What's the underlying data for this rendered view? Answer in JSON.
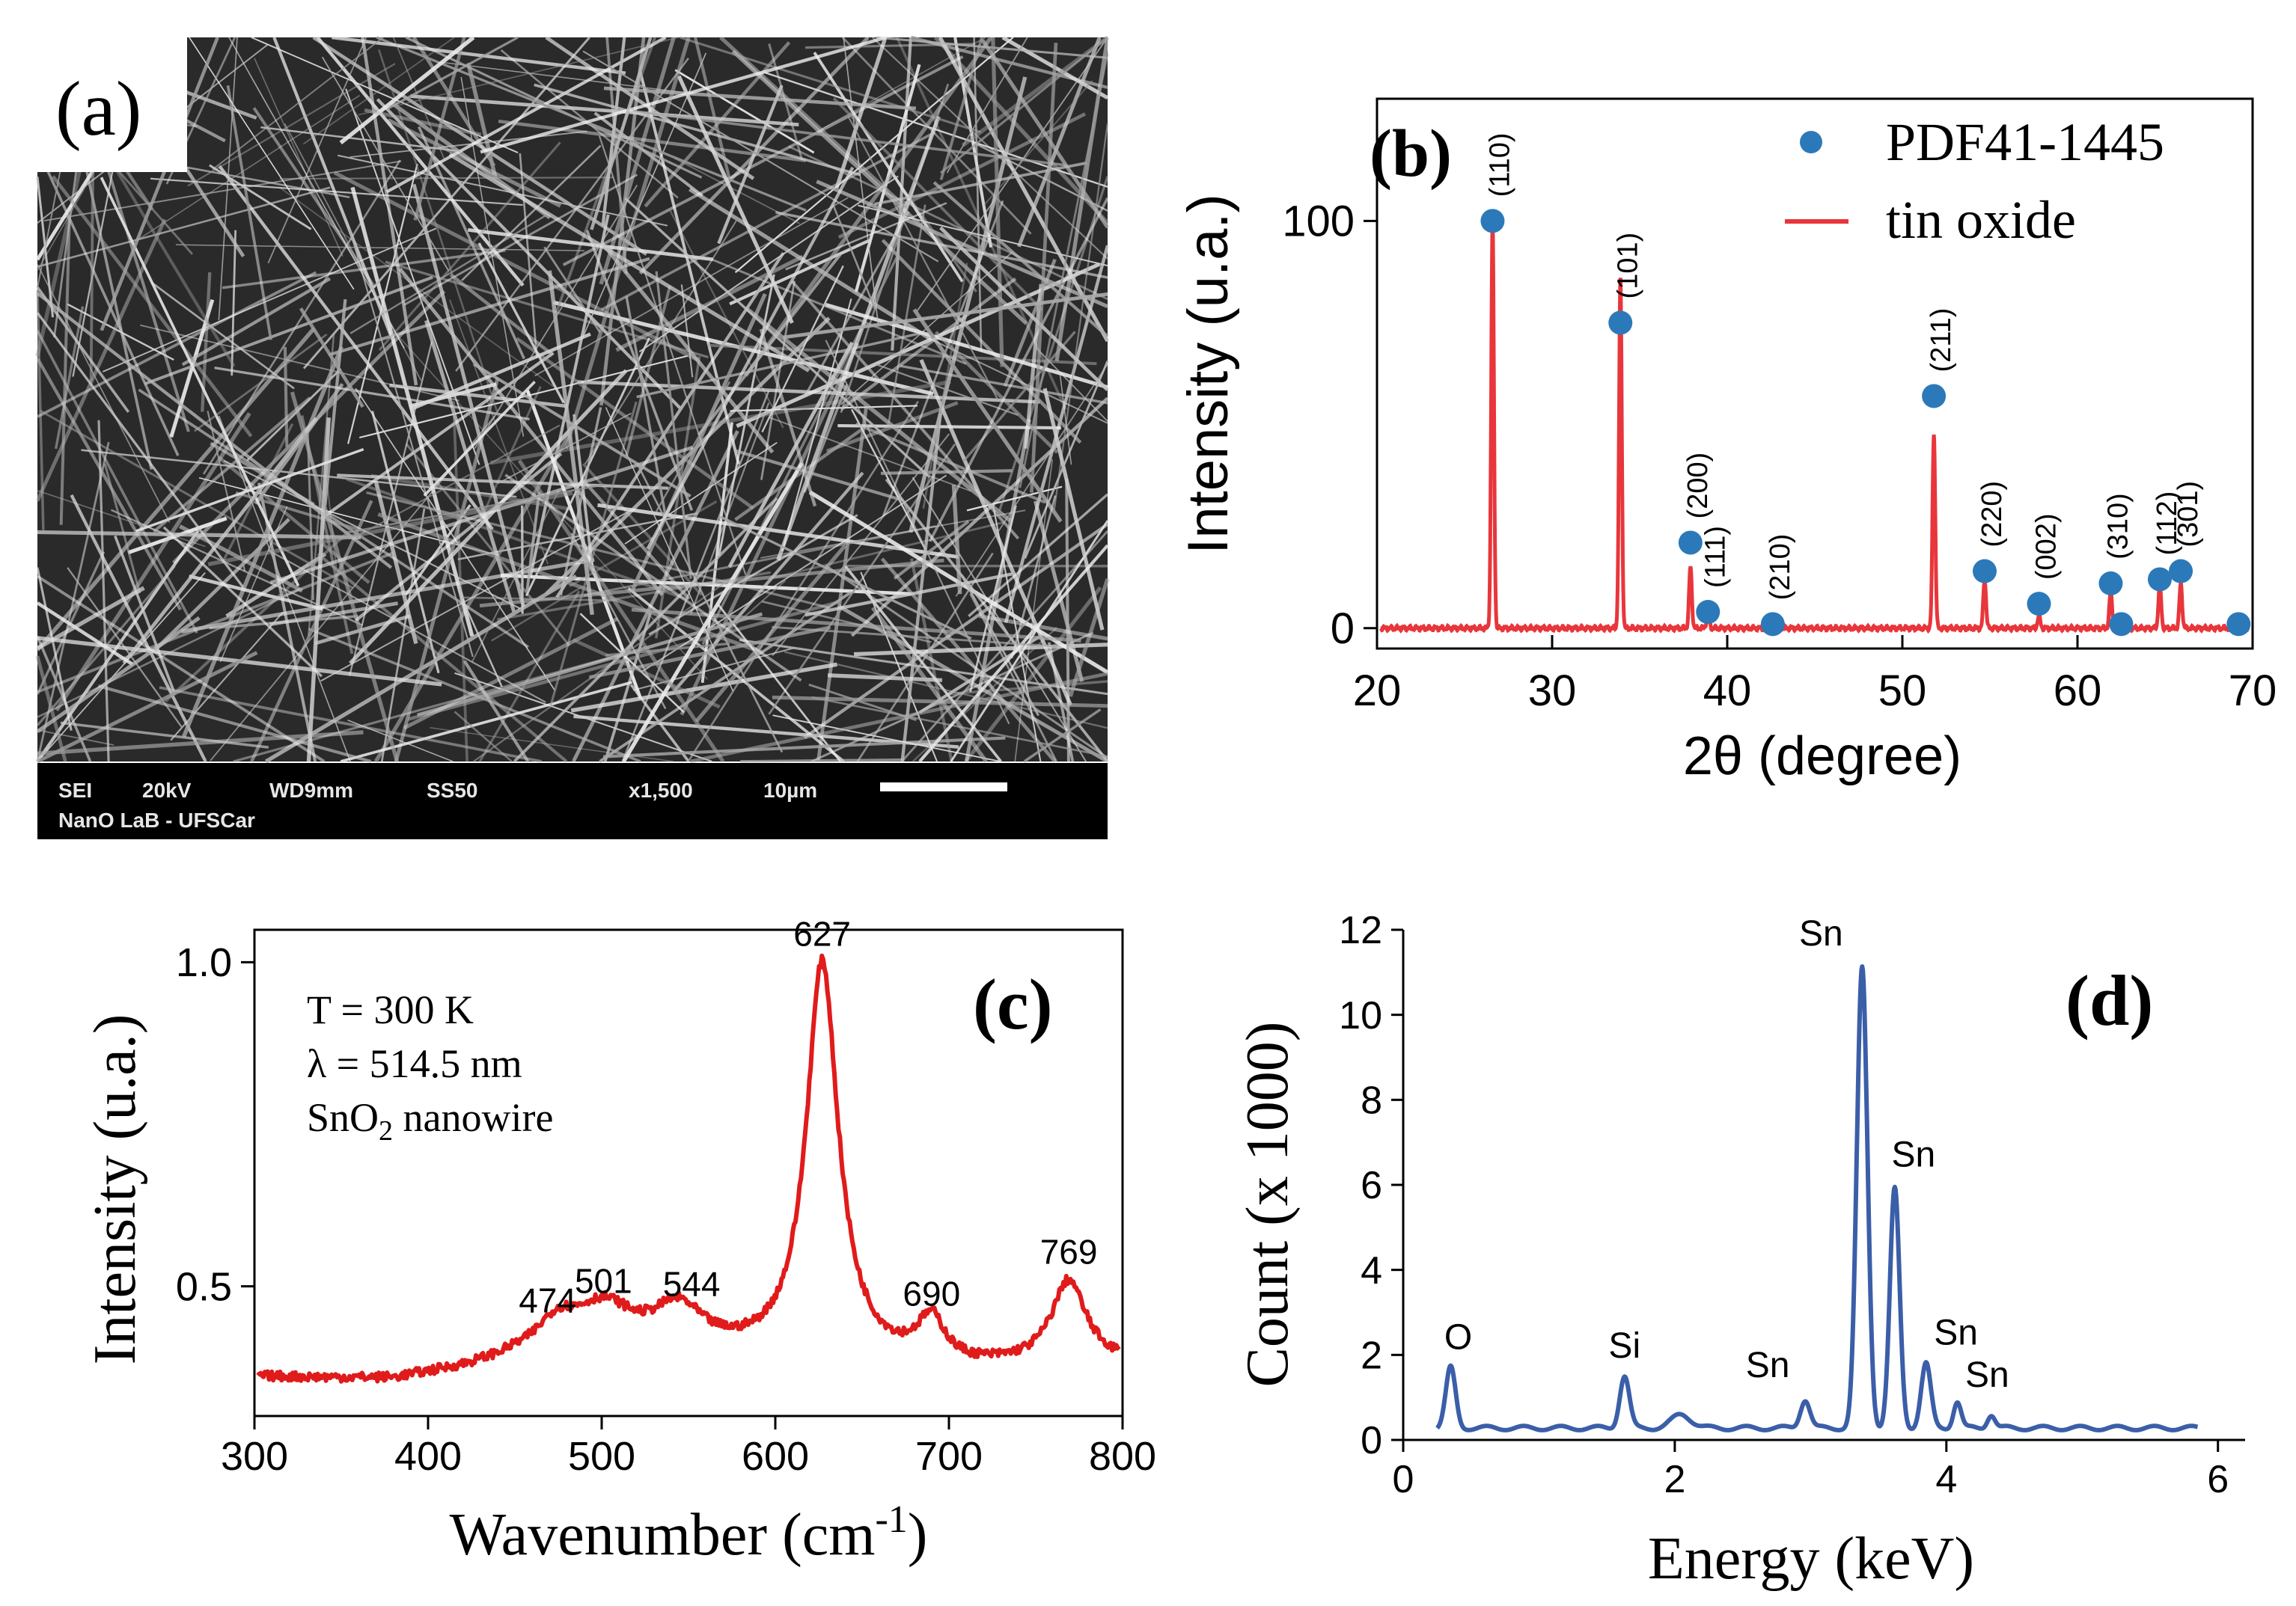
{
  "colors": {
    "xrd_line": "#e8363b",
    "xrd_marker": "#2c79b9",
    "raman_line": "#e01b1b",
    "eds_line": "#3b5ea8",
    "sem_bg": "#2a2a2a",
    "sem_fiber": "#d8d8d8"
  },
  "sem": {
    "panel_label": "(a)",
    "info_line1": [
      "SEI",
      "20kV",
      "WD9mm",
      "SS50",
      "x1,500",
      "10µm"
    ],
    "info_line2": "NanO LaB - UFSCar"
  },
  "chart_data": [
    {
      "id": "xrd",
      "type": "line",
      "panel_label": "(b)",
      "title": "",
      "xlabel": "2θ (degree)",
      "ylabel": "Intensity (u.a.)",
      "xlim": [
        20,
        70
      ],
      "ylim": [
        -5,
        130
      ],
      "xticks": [
        20,
        30,
        40,
        50,
        60,
        70
      ],
      "yticks": [
        0,
        100
      ],
      "legend": [
        "PDF41-1445",
        "tin oxide"
      ],
      "legend_position": "top-right",
      "peaks": [
        {
          "x": 26.6,
          "y": 100
        },
        {
          "x": 33.9,
          "y": 86
        },
        {
          "x": 37.9,
          "y": 15
        },
        {
          "x": 38.9,
          "y": 4
        },
        {
          "x": 42.6,
          "y": 1
        },
        {
          "x": 51.8,
          "y": 48
        },
        {
          "x": 54.7,
          "y": 12
        },
        {
          "x": 57.8,
          "y": 3
        },
        {
          "x": 61.9,
          "y": 9
        },
        {
          "x": 62.5,
          "y": 1
        },
        {
          "x": 64.7,
          "y": 11
        },
        {
          "x": 65.9,
          "y": 11
        }
      ],
      "reference": [
        {
          "x": 26.6,
          "y": 100,
          "hkl": "(110)"
        },
        {
          "x": 33.9,
          "y": 75,
          "hkl": "(101)"
        },
        {
          "x": 37.9,
          "y": 21,
          "hkl": "(200)"
        },
        {
          "x": 38.9,
          "y": 4,
          "hkl": "(111)"
        },
        {
          "x": 42.6,
          "y": 1,
          "hkl": "(210)"
        },
        {
          "x": 51.8,
          "y": 57,
          "hkl": "(211)"
        },
        {
          "x": 54.7,
          "y": 14,
          "hkl": "(220)"
        },
        {
          "x": 57.8,
          "y": 6,
          "hkl": "(002)"
        },
        {
          "x": 61.9,
          "y": 11,
          "hkl": "(310)"
        },
        {
          "x": 62.5,
          "y": 1,
          "hkl": ""
        },
        {
          "x": 64.7,
          "y": 12,
          "hkl": "(112)"
        },
        {
          "x": 65.9,
          "y": 14,
          "hkl": "(301)"
        },
        {
          "x": 69.2,
          "y": 1,
          "hkl": ""
        }
      ]
    },
    {
      "id": "raman",
      "type": "line",
      "panel_label": "(c)",
      "title": "",
      "xlabel": "Wavenumber (cm",
      "xlabel_sup": "-1",
      "ylabel": "Intensity (u.a.)",
      "xlim": [
        300,
        800
      ],
      "ylim": [
        0.3,
        1.05
      ],
      "xticks": [
        300,
        400,
        500,
        600,
        700,
        800
      ],
      "yticks": [
        0.5,
        1.0
      ],
      "ytick_labels": [
        "0.5",
        "1.0"
      ],
      "annotation": [
        "T = 300 K",
        "λ = 514.5 nm",
        "SnO",
        "2",
        " nanowire"
      ],
      "baseline": [
        [
          300,
          0.36
        ],
        [
          340,
          0.357
        ],
        [
          380,
          0.355
        ],
        [
          420,
          0.37
        ],
        [
          450,
          0.385
        ],
        [
          640,
          0.39
        ],
        [
          660,
          0.38
        ],
        [
          700,
          0.37
        ],
        [
          740,
          0.375
        ],
        [
          800,
          0.38
        ]
      ],
      "peaks": [
        {
          "x": 474,
          "y": 0.43,
          "label": "474"
        },
        {
          "x": 501,
          "y": 0.46,
          "label": "501"
        },
        {
          "x": 544,
          "y": 0.455,
          "label": "544"
        },
        {
          "x": 627,
          "y": 0.995,
          "label": "627"
        },
        {
          "x": 690,
          "y": 0.44,
          "label": "690"
        },
        {
          "x": 769,
          "y": 0.505,
          "label": "769"
        }
      ]
    },
    {
      "id": "eds",
      "type": "line",
      "panel_label": "(d)",
      "title": "",
      "xlabel": "Energy (keV)",
      "ylabel": "Count (x 1000)",
      "xlim": [
        0,
        6.2
      ],
      "ylim": [
        0,
        12
      ],
      "xticks": [
        0,
        2,
        4,
        6
      ],
      "yticks": [
        0,
        2,
        4,
        6,
        8,
        10,
        12
      ],
      "peaks": [
        {
          "x": 0.35,
          "y": 1.7,
          "label": "O"
        },
        {
          "x": 1.63,
          "y": 1.5,
          "label": "Si"
        },
        {
          "x": 2.05,
          "y": 0.6,
          "label": ""
        },
        {
          "x": 2.96,
          "y": 0.95,
          "label": "Sn"
        },
        {
          "x": 3.38,
          "y": 11.1,
          "label": "Sn"
        },
        {
          "x": 3.62,
          "y": 5.9,
          "label": "Sn"
        },
        {
          "x": 3.85,
          "y": 1.8,
          "label": "Sn"
        },
        {
          "x": 4.08,
          "y": 0.9,
          "label": "Sn"
        },
        {
          "x": 4.33,
          "y": 0.6,
          "label": ""
        }
      ]
    }
  ]
}
